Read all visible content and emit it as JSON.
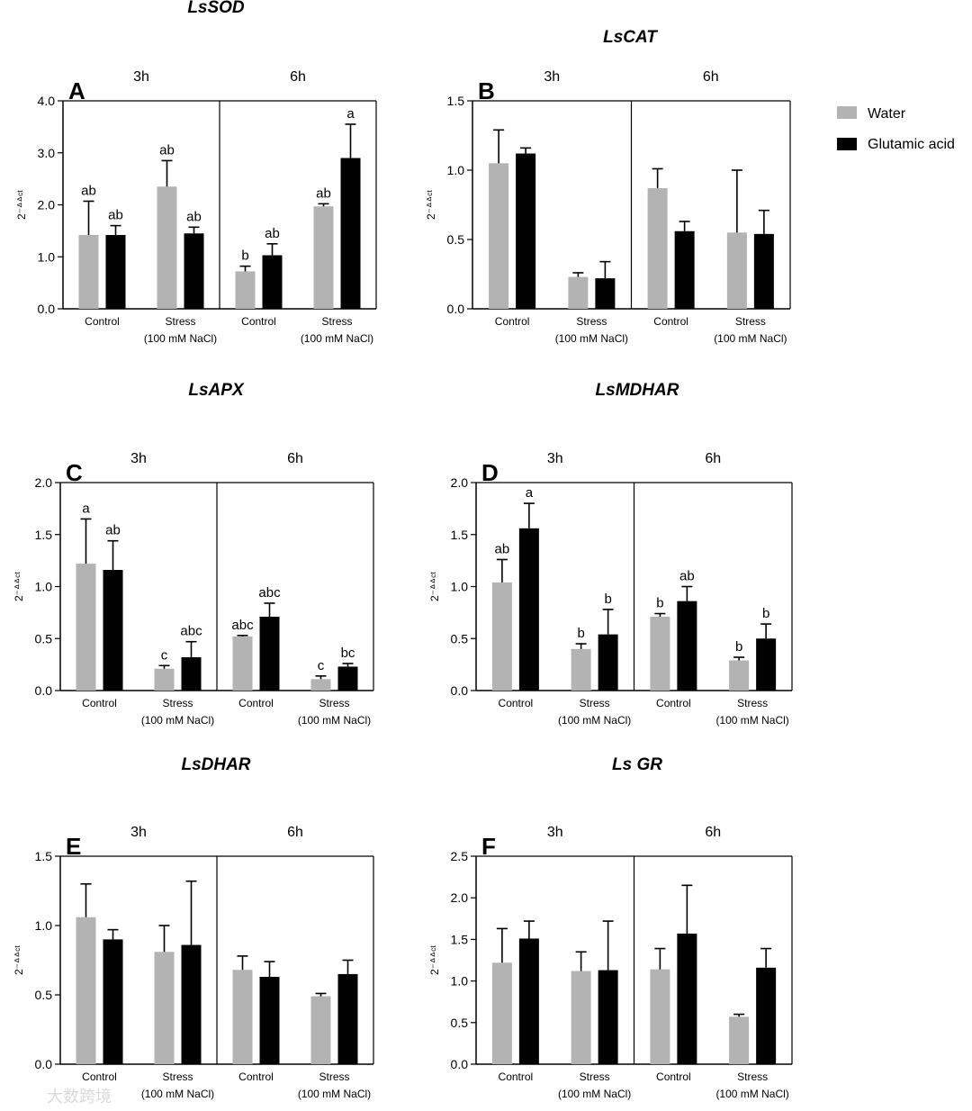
{
  "colors": {
    "water": "#b3b3b3",
    "glutamic_acid": "#000000"
  },
  "legend": [
    {
      "label": "Water",
      "color": "#b3b3b3"
    },
    {
      "label": "Glutamic acid",
      "color": "#000000"
    }
  ],
  "watermark": "大数跨境",
  "chart_data": [
    {
      "type": "bar",
      "panel": "A",
      "title": "LsSOD",
      "ylabel": "2⁻ᐞᐞᶜᵗ",
      "ylim": [
        0,
        4
      ],
      "yticks": [
        "0.0",
        "1.0",
        "2.0",
        "3.0",
        "4.0"
      ],
      "periods": [
        "3h",
        "6h"
      ],
      "categories": [
        "Control",
        "Stress (100 mM NaCl)",
        "Control",
        "Stress (100 mM NaCl)"
      ],
      "category_lines": [
        [
          "Control"
        ],
        [
          "Stress",
          "(100 mM NaCl)"
        ],
        [
          "Control"
        ],
        [
          "Stress",
          "(100 mM NaCl)"
        ]
      ],
      "series": [
        {
          "name": "Water",
          "values": [
            1.42,
            2.35,
            0.72,
            1.97
          ],
          "errors": [
            0.65,
            0.5,
            0.1,
            0.05
          ],
          "labels": [
            "ab",
            "ab",
            "b",
            "ab"
          ]
        },
        {
          "name": "Glutamic acid",
          "values": [
            1.42,
            1.45,
            1.03,
            2.9
          ],
          "errors": [
            0.18,
            0.12,
            0.22,
            0.65
          ],
          "labels": [
            "ab",
            "ab",
            "ab",
            "a"
          ]
        }
      ]
    },
    {
      "type": "bar",
      "panel": "B",
      "title": "LsCAT",
      "ylabel": "2⁻ᐞᐞᶜᵗ",
      "ylim": [
        0,
        1.5
      ],
      "yticks": [
        "0.0",
        "0.5",
        "1.0",
        "1.5"
      ],
      "periods": [
        "3h",
        "6h"
      ],
      "categories": [
        "Control",
        "Stress (100 mM NaCl)",
        "Control",
        "Stress (100 mM NaCl)"
      ],
      "category_lines": [
        [
          "Control"
        ],
        [
          "Stress",
          "(100 mM NaCl)"
        ],
        [
          "Control"
        ],
        [
          "Stress",
          "(100 mM NaCl)"
        ]
      ],
      "series": [
        {
          "name": "Water",
          "values": [
            1.05,
            0.23,
            0.87,
            0.55
          ],
          "errors": [
            0.24,
            0.03,
            0.14,
            0.45
          ],
          "labels": []
        },
        {
          "name": "Glutamic acid",
          "values": [
            1.12,
            0.22,
            0.56,
            0.54
          ],
          "errors": [
            0.04,
            0.12,
            0.07,
            0.17
          ],
          "labels": []
        }
      ]
    },
    {
      "type": "bar",
      "panel": "C",
      "title": "LsAPX",
      "ylabel": "2⁻ᐞᐞᶜᵗ",
      "ylim": [
        0,
        2
      ],
      "yticks": [
        "0.0",
        "0.5",
        "1.0",
        "1.5",
        "2.0"
      ],
      "periods": [
        "3h",
        "6h"
      ],
      "categories": [
        "Control",
        "Stress (100 mM NaCl)",
        "Control",
        "Stress (100 mM NaCl)"
      ],
      "category_lines": [
        [
          "Control"
        ],
        [
          "Stress",
          "(100 mM NaCl)"
        ],
        [
          "Control"
        ],
        [
          "Stress",
          "(100 mM NaCl)"
        ]
      ],
      "series": [
        {
          "name": "Water",
          "values": [
            1.22,
            0.21,
            0.52,
            0.11
          ],
          "errors": [
            0.43,
            0.03,
            0.01,
            0.03
          ],
          "labels": [
            "a",
            "c",
            "abc",
            "c"
          ]
        },
        {
          "name": "Glutamic acid",
          "values": [
            1.16,
            0.32,
            0.71,
            0.23
          ],
          "errors": [
            0.28,
            0.15,
            0.13,
            0.03
          ],
          "labels": [
            "ab",
            "abc",
            "abc",
            "bc"
          ]
        }
      ]
    },
    {
      "type": "bar",
      "panel": "D",
      "title": "LsMDHAR",
      "ylabel": "2⁻ᐞᐞᶜᵗ",
      "ylim": [
        0,
        2
      ],
      "yticks": [
        "0.0",
        "0.5",
        "1.0",
        "1.5",
        "2.0"
      ],
      "periods": [
        "3h",
        "6h"
      ],
      "categories": [
        "Control",
        "Stress (100 mM NaCl)",
        "Control",
        "Stress (100 mM NaCl)"
      ],
      "category_lines": [
        [
          "Control"
        ],
        [
          "Stress",
          "(100 mM NaCl)"
        ],
        [
          "Control"
        ],
        [
          "Stress",
          "(100 mM NaCl)"
        ]
      ],
      "series": [
        {
          "name": "Water",
          "values": [
            1.04,
            0.4,
            0.71,
            0.29
          ],
          "errors": [
            0.22,
            0.05,
            0.03,
            0.03
          ],
          "labels": [
            "ab",
            "b",
            "b",
            "b"
          ]
        },
        {
          "name": "Glutamic acid",
          "values": [
            1.56,
            0.54,
            0.86,
            0.5
          ],
          "errors": [
            0.24,
            0.24,
            0.14,
            0.14
          ],
          "labels": [
            "a",
            "b",
            "ab",
            "b"
          ]
        }
      ]
    },
    {
      "type": "bar",
      "panel": "E",
      "title": "LsDHAR",
      "ylabel": "2⁻ᐞᐞᶜᵗ",
      "ylim": [
        0,
        1.5
      ],
      "yticks": [
        "0.0",
        "0.5",
        "1.0",
        "1.5"
      ],
      "periods": [
        "3h",
        "6h"
      ],
      "categories": [
        "Control",
        "Stress (100 mM NaCl)",
        "Control",
        "Stress (100 mM NaCl)"
      ],
      "category_lines": [
        [
          "Control"
        ],
        [
          "Stress",
          "(100 mM NaCl)"
        ],
        [
          "Control"
        ],
        [
          "Stress",
          "(100 mM NaCl)"
        ]
      ],
      "series": [
        {
          "name": "Water",
          "values": [
            1.06,
            0.81,
            0.68,
            0.49
          ],
          "errors": [
            0.24,
            0.19,
            0.1,
            0.02
          ],
          "labels": []
        },
        {
          "name": "Glutamic acid",
          "values": [
            0.9,
            0.86,
            0.63,
            0.65
          ],
          "errors": [
            0.07,
            0.46,
            0.11,
            0.1
          ],
          "labels": []
        }
      ]
    },
    {
      "type": "bar",
      "panel": "F",
      "title": "Ls GR",
      "ylabel": "2⁻ᐞᐞᶜᵗ",
      "ylim": [
        0,
        2.5
      ],
      "yticks": [
        "0.0",
        "0.5",
        "1.0",
        "1.5",
        "2.0",
        "2.5"
      ],
      "periods": [
        "3h",
        "6h"
      ],
      "categories": [
        "Control",
        "Stress (100 mM NaCl)",
        "Control",
        "Stress (100 mM NaCl)"
      ],
      "category_lines": [
        [
          "Control"
        ],
        [
          "Stress",
          "(100 mM NaCl)"
        ],
        [
          "Control"
        ],
        [
          "Stress",
          "(100 mM NaCl)"
        ]
      ],
      "series": [
        {
          "name": "Water",
          "values": [
            1.22,
            1.12,
            1.14,
            0.57
          ],
          "errors": [
            0.41,
            0.23,
            0.25,
            0.03
          ],
          "labels": []
        },
        {
          "name": "Glutamic acid",
          "values": [
            1.51,
            1.13,
            1.57,
            1.16
          ],
          "errors": [
            0.21,
            0.59,
            0.58,
            0.23
          ],
          "labels": []
        }
      ]
    }
  ]
}
